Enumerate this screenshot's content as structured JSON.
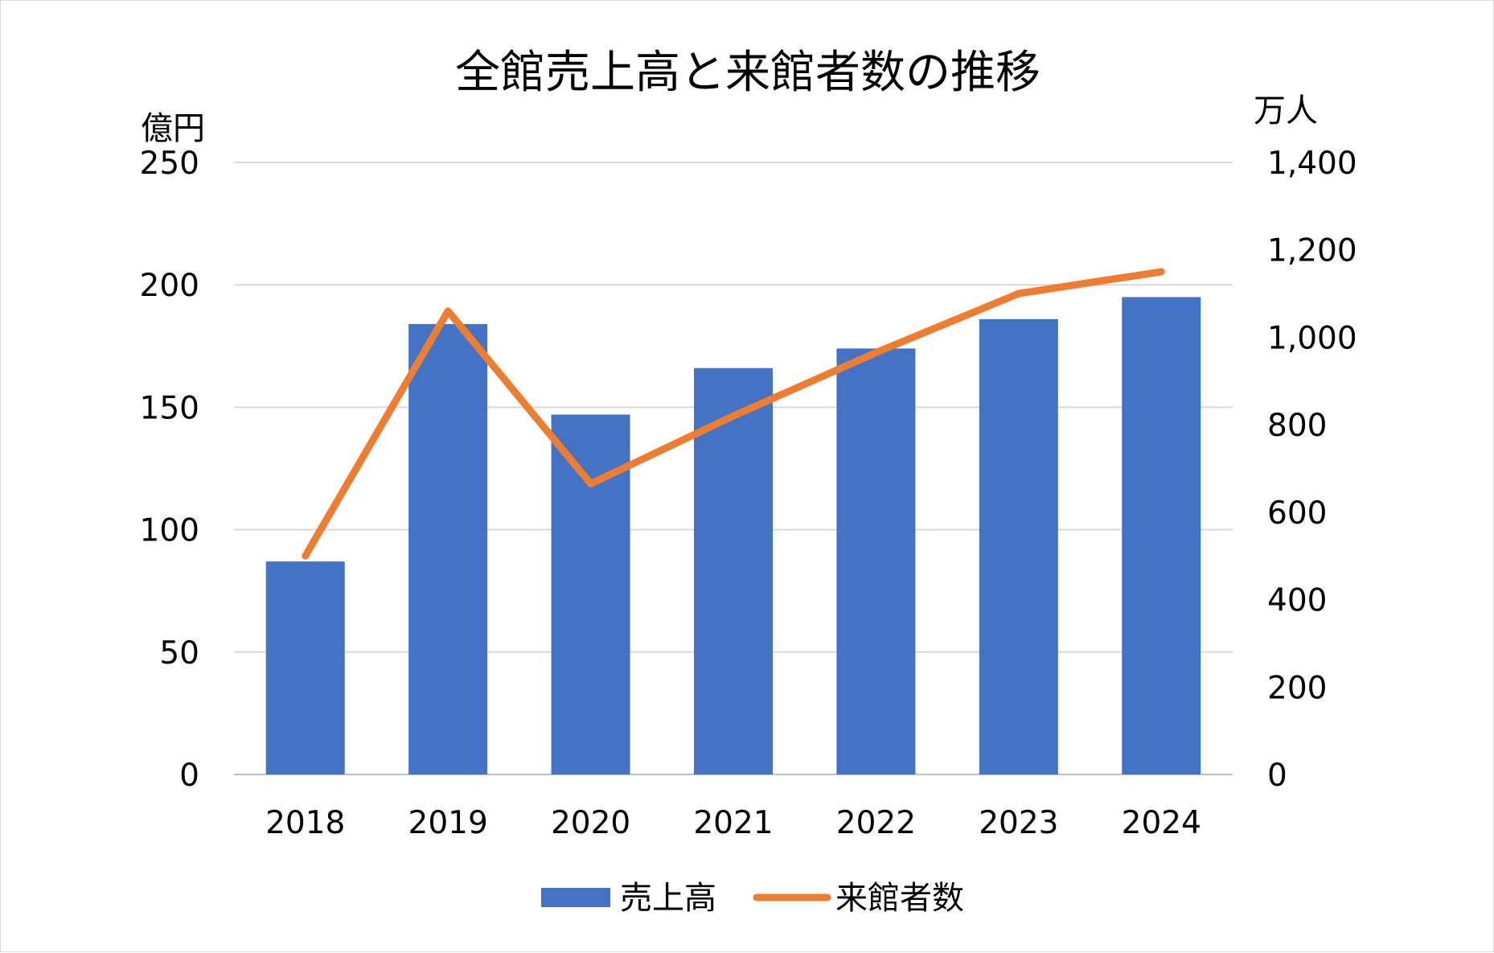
{
  "chart_data": {
    "type": "bar+line",
    "title": "全館売上高と来館者数の推移",
    "categories": [
      "2018",
      "2019",
      "2020",
      "2021",
      "2022",
      "2023",
      "2024"
    ],
    "series": [
      {
        "name": "売上高",
        "type": "bar",
        "axis": "left",
        "color": "#4472C4",
        "values": [
          87,
          184,
          147,
          166,
          174,
          186,
          195
        ]
      },
      {
        "name": "来館者数",
        "type": "line",
        "axis": "right",
        "color": "#ED7D31",
        "values": [
          500,
          1060,
          665,
          820,
          965,
          1100,
          1150
        ]
      }
    ],
    "left_axis": {
      "unit_label": "億円",
      "range": [
        0,
        250
      ],
      "ticks": [
        "0",
        "50",
        "100",
        "150",
        "200",
        "250"
      ]
    },
    "right_axis": {
      "unit_label": "万人",
      "range": [
        0,
        1400
      ],
      "ticks": [
        "0",
        "200",
        "400",
        "600",
        "800",
        "1,000",
        "1,200",
        "1,400"
      ]
    },
    "gridlines": true,
    "legend": {
      "position": "bottom",
      "items": [
        "売上高",
        "来館者数"
      ]
    },
    "colors": {
      "gridline": "#d9d9d9",
      "bar": "#4472C4",
      "line": "#ED7D31"
    }
  }
}
